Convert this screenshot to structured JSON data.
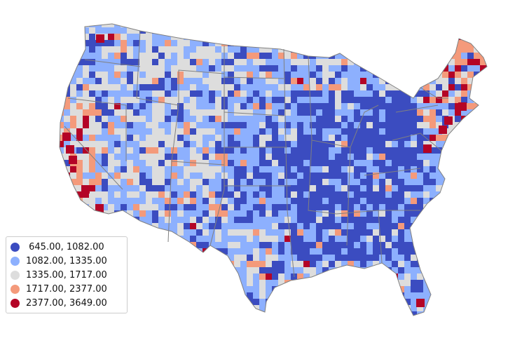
{
  "map": {
    "legend": [
      {
        "label": " 645.00, 1082.00",
        "color": "#3b4cc0"
      },
      {
        "label": "1082.00, 1335.00",
        "color": "#8db0fe"
      },
      {
        "label": "1335.00, 1717.00",
        "color": "#dddddd"
      },
      {
        "label": "1717.00, 2377.00",
        "color": "#f49a7b"
      },
      {
        "label": "2377.00, 3649.00",
        "color": "#b40426"
      }
    ],
    "state_border_color": "#808080",
    "background_color": "#ffffff"
  }
}
